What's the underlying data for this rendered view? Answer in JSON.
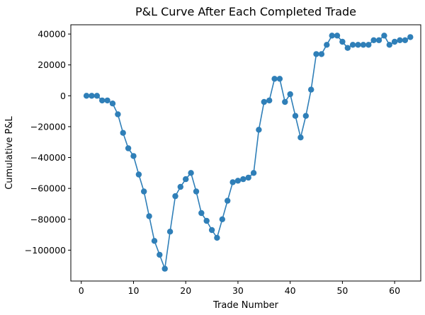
{
  "chart_data": {
    "type": "line",
    "title": "P&L Curve After Each Completed Trade",
    "xlabel": "Trade Number",
    "ylabel": "Cumulative P&L",
    "xlim": [
      -2,
      65
    ],
    "ylim": [
      -120000,
      46000
    ],
    "xticks": [
      0,
      10,
      20,
      30,
      40,
      50,
      60
    ],
    "xtick_labels": [
      "0",
      "10",
      "20",
      "30",
      "40",
      "50",
      "60"
    ],
    "yticks": [
      -100000,
      -80000,
      -60000,
      -40000,
      -20000,
      0,
      20000,
      40000
    ],
    "ytick_labels": [
      "−100000",
      "−80000",
      "−60000",
      "−40000",
      "−20000",
      "0",
      "20000",
      "40000"
    ],
    "grid": false,
    "color": "#2f7fb8",
    "series": [
      {
        "x": [
          1,
          2,
          3,
          4,
          5,
          6,
          7,
          8,
          9,
          10,
          11,
          12,
          13,
          14,
          15,
          16,
          17,
          18,
          19,
          20,
          21,
          22,
          23,
          24,
          25,
          26,
          27,
          28,
          29,
          30,
          31,
          32,
          33,
          34,
          35,
          36,
          37,
          38,
          39,
          40,
          41,
          42,
          43,
          44,
          45,
          46,
          47,
          48,
          49,
          50,
          51,
          52,
          53,
          54,
          55,
          56,
          57,
          58,
          59,
          60,
          61,
          62,
          63
        ],
        "values": [
          0,
          0,
          0,
          -3000,
          -3000,
          -5000,
          -12000,
          -24000,
          -34000,
          -39000,
          -51000,
          -62000,
          -78000,
          -94000,
          -103000,
          -112000,
          -88000,
          -65000,
          -59000,
          -54000,
          -50000,
          -62000,
          -76000,
          -81000,
          -87000,
          -92000,
          -80000,
          -68000,
          -56000,
          -55000,
          -54000,
          -53000,
          -50000,
          -22000,
          -4000,
          -3000,
          11000,
          11000,
          -4000,
          1000,
          -13000,
          -27000,
          -13000,
          4000,
          27000,
          27000,
          33000,
          39000,
          39000,
          35000,
          31000,
          33000,
          33000,
          33000,
          33000,
          36000,
          36000,
          39000,
          33000,
          35000,
          36000,
          36000,
          38000
        ]
      }
    ]
  }
}
